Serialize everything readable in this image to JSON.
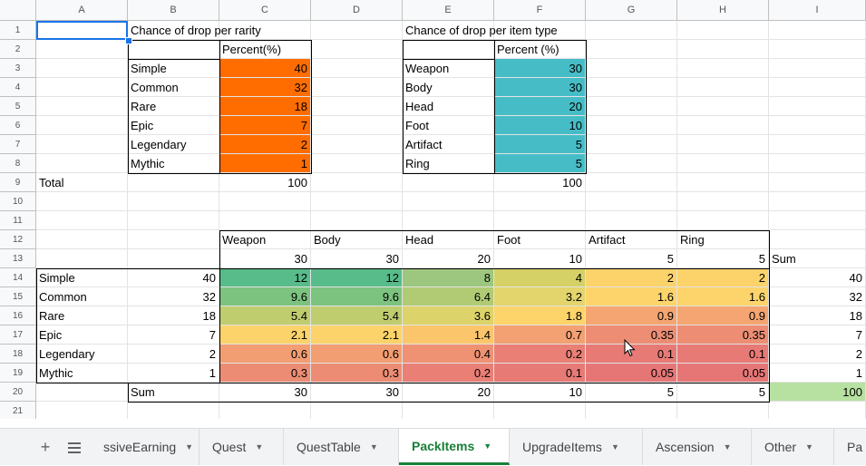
{
  "columns": [
    "A",
    "B",
    "C",
    "D",
    "E",
    "F",
    "G",
    "H",
    "I"
  ],
  "rows": [
    1,
    2,
    3,
    4,
    5,
    6,
    7,
    8,
    9,
    10,
    11,
    12,
    13,
    14,
    15,
    16,
    17,
    18,
    19,
    20,
    21
  ],
  "colors": {
    "rarity_fill": "#ff6d01",
    "itemtype_fill": "#46bdc6",
    "sum_total_fill": "#b7e1a1",
    "active_tab": "#188038"
  },
  "cells": [
    {
      "ref": "B1",
      "value": "Chance  of drop per rarity",
      "align": "left"
    },
    {
      "ref": "E1",
      "value": "Chance of drop per item type",
      "align": "left"
    },
    {
      "ref": "C2",
      "value": "Percent(%)",
      "align": "left"
    },
    {
      "ref": "F2",
      "value": "Percent (%)",
      "align": "left"
    },
    {
      "ref": "B3",
      "value": "Simple",
      "align": "left"
    },
    {
      "ref": "C3",
      "value": "40",
      "align": "right",
      "bg": "#ff6d01"
    },
    {
      "ref": "B4",
      "value": "Common",
      "align": "left"
    },
    {
      "ref": "C4",
      "value": "32",
      "align": "right",
      "bg": "#ff6d01"
    },
    {
      "ref": "B5",
      "value": "Rare",
      "align": "left"
    },
    {
      "ref": "C5",
      "value": "18",
      "align": "right",
      "bg": "#ff6d01"
    },
    {
      "ref": "B6",
      "value": "Epic",
      "align": "left"
    },
    {
      "ref": "C6",
      "value": "7",
      "align": "right",
      "bg": "#ff6d01"
    },
    {
      "ref": "B7",
      "value": "Legendary",
      "align": "left"
    },
    {
      "ref": "C7",
      "value": "2",
      "align": "right",
      "bg": "#ff6d01"
    },
    {
      "ref": "B8",
      "value": "Mythic",
      "align": "left"
    },
    {
      "ref": "C8",
      "value": "1",
      "align": "right",
      "bg": "#ff6d01"
    },
    {
      "ref": "E3",
      "value": "Weapon",
      "align": "left"
    },
    {
      "ref": "F3",
      "value": "30",
      "align": "right",
      "bg": "#46bdc6"
    },
    {
      "ref": "E4",
      "value": "Body",
      "align": "left"
    },
    {
      "ref": "F4",
      "value": "30",
      "align": "right",
      "bg": "#46bdc6"
    },
    {
      "ref": "E5",
      "value": "Head",
      "align": "left"
    },
    {
      "ref": "F5",
      "value": "20",
      "align": "right",
      "bg": "#46bdc6"
    },
    {
      "ref": "E6",
      "value": "Foot",
      "align": "left"
    },
    {
      "ref": "F6",
      "value": "10",
      "align": "right",
      "bg": "#46bdc6"
    },
    {
      "ref": "E7",
      "value": "Artifact",
      "align": "left"
    },
    {
      "ref": "F7",
      "value": "5",
      "align": "right",
      "bg": "#46bdc6"
    },
    {
      "ref": "E8",
      "value": "Ring",
      "align": "left"
    },
    {
      "ref": "F8",
      "value": "5",
      "align": "right",
      "bg": "#46bdc6"
    },
    {
      "ref": "A9",
      "value": "Total",
      "align": "left"
    },
    {
      "ref": "C9",
      "value": "100",
      "align": "right"
    },
    {
      "ref": "F9",
      "value": "100",
      "align": "right"
    },
    {
      "ref": "C12",
      "value": "Weapon",
      "align": "left"
    },
    {
      "ref": "D12",
      "value": "Body",
      "align": "left"
    },
    {
      "ref": "E12",
      "value": "Head",
      "align": "left"
    },
    {
      "ref": "F12",
      "value": "Foot",
      "align": "left"
    },
    {
      "ref": "G12",
      "value": "Artifact",
      "align": "left"
    },
    {
      "ref": "H12",
      "value": "Ring",
      "align": "left"
    },
    {
      "ref": "C13",
      "value": "30",
      "align": "right"
    },
    {
      "ref": "D13",
      "value": "30",
      "align": "right"
    },
    {
      "ref": "E13",
      "value": "20",
      "align": "right"
    },
    {
      "ref": "F13",
      "value": "10",
      "align": "right"
    },
    {
      "ref": "G13",
      "value": "5",
      "align": "right"
    },
    {
      "ref": "H13",
      "value": "5",
      "align": "right"
    },
    {
      "ref": "I13",
      "value": "Sum",
      "align": "left"
    },
    {
      "ref": "A14",
      "value": "Simple",
      "align": "left"
    },
    {
      "ref": "B14",
      "value": "40",
      "align": "right"
    },
    {
      "ref": "C14",
      "value": "12",
      "align": "right",
      "bg": "#57bb8a"
    },
    {
      "ref": "D14",
      "value": "12",
      "align": "right",
      "bg": "#57bb8a"
    },
    {
      "ref": "E14",
      "value": "8",
      "align": "right",
      "bg": "#9dc77e"
    },
    {
      "ref": "F14",
      "value": "4",
      "align": "right",
      "bg": "#d5d167"
    },
    {
      "ref": "G14",
      "value": "2",
      "align": "right",
      "bg": "#fcd36a"
    },
    {
      "ref": "H14",
      "value": "2",
      "align": "right",
      "bg": "#fcd36a"
    },
    {
      "ref": "I14",
      "value": "40",
      "align": "right"
    },
    {
      "ref": "A15",
      "value": "Common",
      "align": "left"
    },
    {
      "ref": "B15",
      "value": "32",
      "align": "right"
    },
    {
      "ref": "C15",
      "value": "9.6",
      "align": "right",
      "bg": "#7cc37f"
    },
    {
      "ref": "D15",
      "value": "9.6",
      "align": "right",
      "bg": "#7cc37f"
    },
    {
      "ref": "E15",
      "value": "6.4",
      "align": "right",
      "bg": "#b0cb74"
    },
    {
      "ref": "F15",
      "value": "3.2",
      "align": "right",
      "bg": "#e3d46c"
    },
    {
      "ref": "G15",
      "value": "1.6",
      "align": "right",
      "bg": "#fdd46b"
    },
    {
      "ref": "H15",
      "value": "1.6",
      "align": "right",
      "bg": "#fdd46b"
    },
    {
      "ref": "I15",
      "value": "32",
      "align": "right"
    },
    {
      "ref": "A16",
      "value": "Rare",
      "align": "left"
    },
    {
      "ref": "B16",
      "value": "18",
      "align": "right"
    },
    {
      "ref": "C16",
      "value": "5.4",
      "align": "right",
      "bg": "#bfcd6f"
    },
    {
      "ref": "D16",
      "value": "5.4",
      "align": "right",
      "bg": "#bfcd6f"
    },
    {
      "ref": "E16",
      "value": "3.6",
      "align": "right",
      "bg": "#dcd36a"
    },
    {
      "ref": "F16",
      "value": "1.8",
      "align": "right",
      "bg": "#fdd46a"
    },
    {
      "ref": "G16",
      "value": "0.9",
      "align": "right",
      "bg": "#f4a571"
    },
    {
      "ref": "H16",
      "value": "0.9",
      "align": "right",
      "bg": "#f4a571"
    },
    {
      "ref": "I16",
      "value": "18",
      "align": "right"
    },
    {
      "ref": "A17",
      "value": "Epic",
      "align": "left"
    },
    {
      "ref": "B17",
      "value": "7",
      "align": "right"
    },
    {
      "ref": "C17",
      "value": "2.1",
      "align": "right",
      "bg": "#fcd36a"
    },
    {
      "ref": "D17",
      "value": "2.1",
      "align": "right",
      "bg": "#fcd36a"
    },
    {
      "ref": "E17",
      "value": "1.4",
      "align": "right",
      "bg": "#fbc66b"
    },
    {
      "ref": "F17",
      "value": "0.7",
      "align": "right",
      "bg": "#f3a072"
    },
    {
      "ref": "G17",
      "value": "0.35",
      "align": "right",
      "bg": "#ec8d74"
    },
    {
      "ref": "H17",
      "value": "0.35",
      "align": "right",
      "bg": "#ec8d74"
    },
    {
      "ref": "I17",
      "value": "7",
      "align": "right"
    },
    {
      "ref": "A18",
      "value": "Legendary",
      "align": "left"
    },
    {
      "ref": "B18",
      "value": "2",
      "align": "right"
    },
    {
      "ref": "C18",
      "value": "0.6",
      "align": "right",
      "bg": "#f29d72"
    },
    {
      "ref": "D18",
      "value": "0.6",
      "align": "right",
      "bg": "#f29d72"
    },
    {
      "ref": "E18",
      "value": "0.4",
      "align": "right",
      "bg": "#ee9273"
    },
    {
      "ref": "F18",
      "value": "0.2",
      "align": "right",
      "bg": "#e97f75"
    },
    {
      "ref": "G18",
      "value": "0.1",
      "align": "right",
      "bg": "#e77a75"
    },
    {
      "ref": "H18",
      "value": "0.1",
      "align": "right",
      "bg": "#e77a75"
    },
    {
      "ref": "I18",
      "value": "2",
      "align": "right"
    },
    {
      "ref": "A19",
      "value": "Mythic",
      "align": "left"
    },
    {
      "ref": "B19",
      "value": "1",
      "align": "right"
    },
    {
      "ref": "C19",
      "value": "0.3",
      "align": "right",
      "bg": "#ec8c74"
    },
    {
      "ref": "D19",
      "value": "0.3",
      "align": "right",
      "bg": "#ec8c74"
    },
    {
      "ref": "E19",
      "value": "0.2",
      "align": "right",
      "bg": "#e97f75"
    },
    {
      "ref": "F19",
      "value": "0.1",
      "align": "right",
      "bg": "#e77a75"
    },
    {
      "ref": "G19",
      "value": "0.05",
      "align": "right",
      "bg": "#e67676"
    },
    {
      "ref": "H19",
      "value": "0.05",
      "align": "right",
      "bg": "#e67676"
    },
    {
      "ref": "I19",
      "value": "1",
      "align": "right"
    },
    {
      "ref": "B20",
      "value": "Sum",
      "align": "left"
    },
    {
      "ref": "C20",
      "value": "30",
      "align": "right"
    },
    {
      "ref": "D20",
      "value": "30",
      "align": "right"
    },
    {
      "ref": "E20",
      "value": "20",
      "align": "right"
    },
    {
      "ref": "F20",
      "value": "10",
      "align": "right"
    },
    {
      "ref": "G20",
      "value": "5",
      "align": "right"
    },
    {
      "ref": "H20",
      "value": "5",
      "align": "right"
    },
    {
      "ref": "I20",
      "value": "100",
      "align": "right",
      "bg": "#b7e1a1"
    }
  ],
  "sheet_bar": {
    "add_icon": "plus-icon",
    "list_icon": "sheet-list-icon",
    "scroll_icon": "chevron-left-icon",
    "tabs": [
      {
        "label": "ssiveEarning",
        "active": false
      },
      {
        "label": "Quest",
        "active": false
      },
      {
        "label": "QuestTable",
        "active": false
      },
      {
        "label": "PackItems",
        "active": true
      },
      {
        "label": "UpgradeItems",
        "active": false
      },
      {
        "label": "Ascension",
        "active": false
      },
      {
        "label": "Other",
        "active": false
      },
      {
        "label": "Pa",
        "active": false
      }
    ]
  }
}
